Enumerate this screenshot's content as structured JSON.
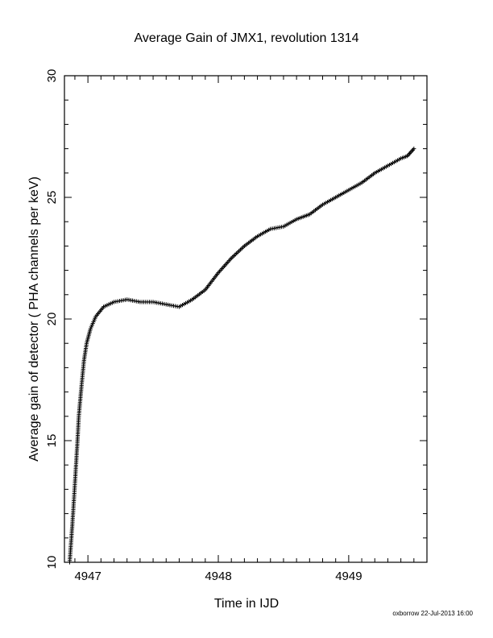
{
  "chart_data": {
    "type": "scatter",
    "title": "Average Gain of JMX1, revolution 1314",
    "xlabel": "Time in IJD",
    "ylabel": "Average gain of detector ( PHA channels per keV)",
    "xlim": [
      4946.82,
      4949.6
    ],
    "ylim": [
      10,
      30
    ],
    "xticks": [
      4947,
      4948,
      4949
    ],
    "yticks": [
      10,
      15,
      20,
      25,
      30
    ],
    "grid": false,
    "marker": "plus",
    "series": [
      {
        "points": [
          [
            4946.86,
            10.0
          ],
          [
            4946.88,
            11.5
          ],
          [
            4946.9,
            13.2
          ],
          [
            4946.92,
            15.0
          ],
          [
            4946.93,
            16.0
          ],
          [
            4946.95,
            17.2
          ],
          [
            4946.97,
            18.3
          ],
          [
            4946.99,
            19.0
          ],
          [
            4947.02,
            19.6
          ],
          [
            4947.06,
            20.1
          ],
          [
            4947.12,
            20.5
          ],
          [
            4947.2,
            20.7
          ],
          [
            4947.3,
            20.8
          ],
          [
            4947.4,
            20.7
          ],
          [
            4947.5,
            20.7
          ],
          [
            4947.6,
            20.6
          ],
          [
            4947.7,
            20.5
          ],
          [
            4947.8,
            20.8
          ],
          [
            4947.9,
            21.2
          ],
          [
            4948.0,
            21.9
          ],
          [
            4948.1,
            22.5
          ],
          [
            4948.2,
            23.0
          ],
          [
            4948.3,
            23.4
          ],
          [
            4948.4,
            23.7
          ],
          [
            4948.5,
            23.8
          ],
          [
            4948.6,
            24.1
          ],
          [
            4948.7,
            24.3
          ],
          [
            4948.8,
            24.7
          ],
          [
            4948.9,
            25.0
          ],
          [
            4949.0,
            25.3
          ],
          [
            4949.1,
            25.6
          ],
          [
            4949.2,
            26.0
          ],
          [
            4949.3,
            26.3
          ],
          [
            4949.4,
            26.6
          ],
          [
            4949.45,
            26.7
          ],
          [
            4949.5,
            27.0
          ]
        ]
      }
    ]
  },
  "footer": "oxborrow 22-Jul-2013 16:00"
}
